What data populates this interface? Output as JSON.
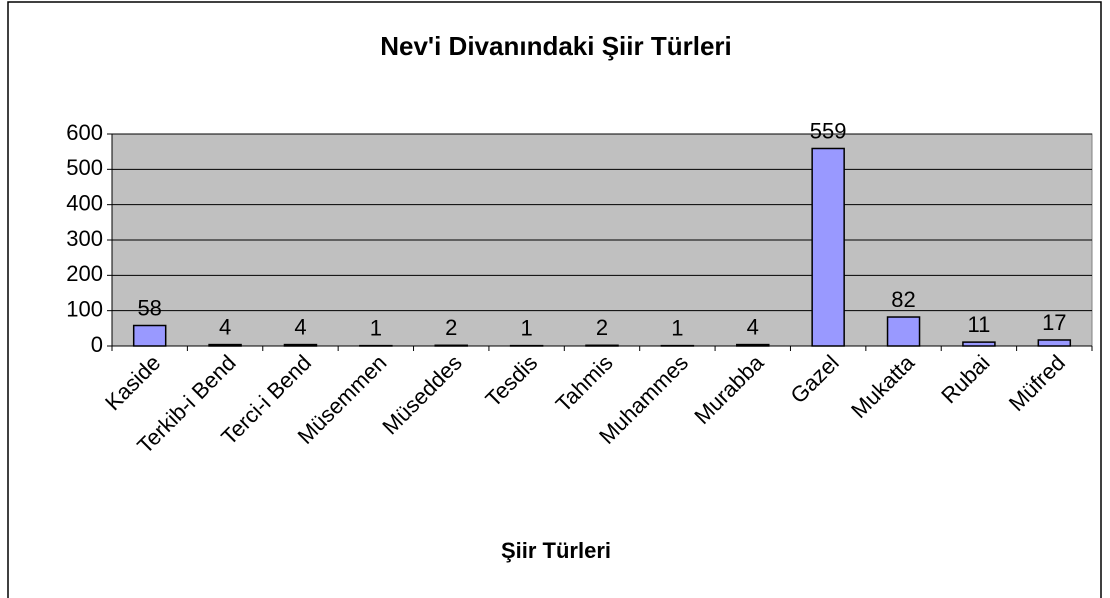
{
  "chart_data": {
    "type": "bar",
    "title": "Nev'i Divanındaki Şiir Türleri",
    "x_label": "Şiir Türleri",
    "categories": [
      "Kaside",
      "Terkib-i Bend",
      "Terci-i Bend",
      "Müsemmen",
      "Müseddes",
      "Tesdis",
      "Tahmis",
      "Muhammes",
      "Murabba",
      "Gazel",
      "Mukatta",
      "Rubai",
      "Müfred"
    ],
    "values": [
      58,
      4,
      4,
      1,
      2,
      1,
      2,
      1,
      4,
      559,
      82,
      11,
      17
    ],
    "color": "#9999ff",
    "ylim": [
      0,
      600
    ],
    "yticks": [
      0,
      100,
      200,
      300,
      400,
      500,
      600
    ],
    "grid": true
  }
}
